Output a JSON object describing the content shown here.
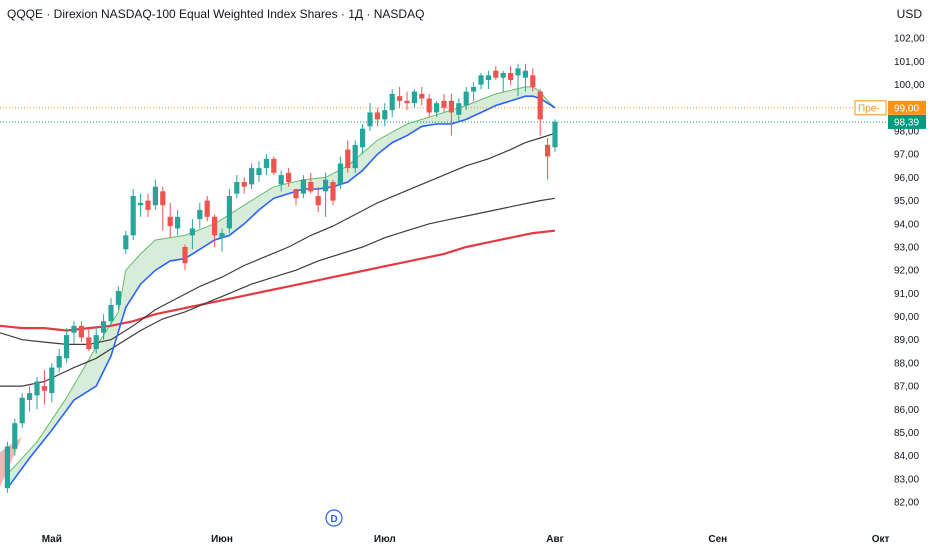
{
  "header": {
    "title": "QQQE · Direxion NASDAQ-100 Equal Weighted Index Shares · 1Д · NASDAQ",
    "currency": "USD"
  },
  "event_badge": "D",
  "colors": {
    "up": "#26a69a",
    "down": "#ef5350",
    "ema_fast": "#2962ff",
    "cloud_fill": "#c8e6c9",
    "cloud_edge": "#66bb6a",
    "sma_50": "#3d3d3d",
    "sma_100": "#3d3d3d",
    "sma_200": "#e53945",
    "premarket": "#f7931a",
    "last_price": "#089981"
  },
  "chart_data": {
    "type": "candlestick",
    "ylim": [
      81.4,
      102.7
    ],
    "y_ticks": [
      "82,00",
      "83,00",
      "84,00",
      "85,00",
      "86,00",
      "87,00",
      "88,00",
      "89,00",
      "90,00",
      "91,00",
      "92,00",
      "93,00",
      "94,00",
      "95,00",
      "96,00",
      "97,00",
      "98,00",
      "100,00",
      "101,00",
      "102,00"
    ],
    "x_labels": [
      "Май",
      "Июн",
      "Июл",
      "Авг",
      "Сен",
      "Окт"
    ],
    "price_labels": {
      "premarket_label": "Пре-",
      "premarket_price": "99,00",
      "last_price": "98,39"
    },
    "candles": [
      [
        82.6,
        84.6,
        82.4,
        84.4
      ],
      [
        84.3,
        85.6,
        84.0,
        85.4
      ],
      [
        85.4,
        86.7,
        85.2,
        86.5
      ],
      [
        86.4,
        87.0,
        85.9,
        86.7
      ],
      [
        86.6,
        87.4,
        86.0,
        87.2
      ],
      [
        87.0,
        87.7,
        86.2,
        86.8
      ],
      [
        86.7,
        88.0,
        86.3,
        87.8
      ],
      [
        87.8,
        88.6,
        87.6,
        88.3
      ],
      [
        88.2,
        89.5,
        88.0,
        89.2
      ],
      [
        89.3,
        89.8,
        88.8,
        89.6
      ],
      [
        89.6,
        89.8,
        88.9,
        89.1
      ],
      [
        89.1,
        89.5,
        88.5,
        88.6
      ],
      [
        88.6,
        89.5,
        88.4,
        89.2
      ],
      [
        89.3,
        90.1,
        89.0,
        89.8
      ],
      [
        89.8,
        90.8,
        89.6,
        90.5
      ],
      [
        90.5,
        91.3,
        90.3,
        91.1
      ],
      [
        92.9,
        93.7,
        92.7,
        93.5
      ],
      [
        93.5,
        95.5,
        93.3,
        95.2
      ],
      [
        94.8,
        95.3,
        94.3,
        94.9
      ],
      [
        95.0,
        95.3,
        94.3,
        94.6
      ],
      [
        94.8,
        95.9,
        94.6,
        95.6
      ],
      [
        95.4,
        95.6,
        93.7,
        94.8
      ],
      [
        94.3,
        94.9,
        93.4,
        93.9
      ],
      [
        93.8,
        94.6,
        93.5,
        94.3
      ],
      [
        93.0,
        93.1,
        92.0,
        92.3
      ],
      [
        93.5,
        94.2,
        92.9,
        93.8
      ],
      [
        94.2,
        94.9,
        93.8,
        94.6
      ],
      [
        95.0,
        95.2,
        94.1,
        94.3
      ],
      [
        94.3,
        94.4,
        93.0,
        93.5
      ],
      [
        93.4,
        93.8,
        92.8,
        93.6
      ],
      [
        93.8,
        95.5,
        93.6,
        95.2
      ],
      [
        95.3,
        96.1,
        95.1,
        95.8
      ],
      [
        95.8,
        96.0,
        95.3,
        95.6
      ],
      [
        95.7,
        96.6,
        95.5,
        96.4
      ],
      [
        96.1,
        96.7,
        95.8,
        96.4
      ],
      [
        96.4,
        97.0,
        96.1,
        96.8
      ],
      [
        96.8,
        96.9,
        96.1,
        96.2
      ],
      [
        95.7,
        96.3,
        95.4,
        96.1
      ],
      [
        96.2,
        96.4,
        95.6,
        95.8
      ],
      [
        95.5,
        95.5,
        94.8,
        95.1
      ],
      [
        95.3,
        96.1,
        95.1,
        95.9
      ],
      [
        95.8,
        96.2,
        95.3,
        95.4
      ],
      [
        95.2,
        95.6,
        94.5,
        94.8
      ],
      [
        95.4,
        96.2,
        94.3,
        95.9
      ],
      [
        95.8,
        95.9,
        94.8,
        95.0
      ],
      [
        95.7,
        96.9,
        95.5,
        96.6
      ],
      [
        97.2,
        97.6,
        96.2,
        96.4
      ],
      [
        96.4,
        97.6,
        96.2,
        97.4
      ],
      [
        97.3,
        98.3,
        97.0,
        98.1
      ],
      [
        98.2,
        99.2,
        98.0,
        98.8
      ],
      [
        98.8,
        99.0,
        98.2,
        98.5
      ],
      [
        98.5,
        99.2,
        98.2,
        98.9
      ],
      [
        98.9,
        99.8,
        98.6,
        99.6
      ],
      [
        99.5,
        99.9,
        99.0,
        99.3
      ],
      [
        99.3,
        99.7,
        98.9,
        99.2
      ],
      [
        99.2,
        99.8,
        99.0,
        99.7
      ],
      [
        99.6,
        99.9,
        99.1,
        99.4
      ],
      [
        99.4,
        99.6,
        98.6,
        98.8
      ],
      [
        98.8,
        99.3,
        98.6,
        99.2
      ],
      [
        99.3,
        99.6,
        98.8,
        99.0
      ],
      [
        99.3,
        99.6,
        97.8,
        98.8
      ],
      [
        98.7,
        99.4,
        98.4,
        99.2
      ],
      [
        99.1,
        99.9,
        98.9,
        99.7
      ],
      [
        99.7,
        100.1,
        99.3,
        99.9
      ],
      [
        100.0,
        100.5,
        99.8,
        100.4
      ],
      [
        100.2,
        100.6,
        99.8,
        100.4
      ],
      [
        100.6,
        100.8,
        100.2,
        100.3
      ],
      [
        100.3,
        100.6,
        99.7,
        100.5
      ],
      [
        100.5,
        100.8,
        100.0,
        100.2
      ],
      [
        100.4,
        100.9,
        99.5,
        100.7
      ],
      [
        100.3,
        100.9,
        99.7,
        100.6
      ],
      [
        100.4,
        100.7,
        99.7,
        99.9
      ],
      [
        99.7,
        99.8,
        97.8,
        98.5
      ],
      [
        97.4,
        97.7,
        95.9,
        96.9
      ],
      [
        97.3,
        98.5,
        97.1,
        98.4
      ]
    ],
    "cloud_upper": [
      [
        0,
        83.2
      ],
      [
        4,
        84.6
      ],
      [
        8,
        86.5
      ],
      [
        12,
        88.7
      ],
      [
        15,
        90.2
      ],
      [
        16,
        92.0
      ],
      [
        18,
        92.7
      ],
      [
        20,
        93.3
      ],
      [
        24,
        93.5
      ],
      [
        28,
        94.0
      ],
      [
        32,
        94.8
      ],
      [
        36,
        95.6
      ],
      [
        40,
        95.9
      ],
      [
        43,
        96.0
      ],
      [
        46,
        96.5
      ],
      [
        50,
        97.6
      ],
      [
        54,
        98.3
      ],
      [
        58,
        98.7
      ],
      [
        62,
        99.1
      ],
      [
        66,
        99.6
      ],
      [
        70,
        99.9
      ],
      [
        71,
        99.9
      ],
      [
        72,
        99.7
      ],
      [
        73,
        99.3
      ],
      [
        74,
        99.0
      ]
    ],
    "ema_fast": [
      [
        0,
        82.6
      ],
      [
        3,
        83.9
      ],
      [
        6,
        85.1
      ],
      [
        9,
        86.4
      ],
      [
        12,
        87.0
      ],
      [
        14,
        88.3
      ],
      [
        16,
        90.4
      ],
      [
        18,
        91.4
      ],
      [
        20,
        92.0
      ],
      [
        22,
        92.4
      ],
      [
        24,
        92.5
      ],
      [
        26,
        92.9
      ],
      [
        28,
        93.3
      ],
      [
        30,
        93.5
      ],
      [
        32,
        94.0
      ],
      [
        34,
        94.6
      ],
      [
        36,
        95.1
      ],
      [
        38,
        95.3
      ],
      [
        40,
        95.5
      ],
      [
        42,
        95.5
      ],
      [
        44,
        95.6
      ],
      [
        46,
        95.8
      ],
      [
        48,
        96.3
      ],
      [
        50,
        97.0
      ],
      [
        52,
        97.5
      ],
      [
        54,
        97.8
      ],
      [
        56,
        98.2
      ],
      [
        58,
        98.3
      ],
      [
        60,
        98.3
      ],
      [
        62,
        98.5
      ],
      [
        64,
        98.8
      ],
      [
        66,
        99.1
      ],
      [
        68,
        99.3
      ],
      [
        70,
        99.5
      ],
      [
        71,
        99.5
      ],
      [
        72,
        99.4
      ],
      [
        73,
        99.2
      ],
      [
        74,
        99.0
      ]
    ],
    "sma_50": [
      [
        -1,
        89.3
      ],
      [
        2,
        89.0
      ],
      [
        5,
        88.9
      ],
      [
        8,
        88.8
      ],
      [
        11,
        88.8
      ],
      [
        14,
        89.0
      ],
      [
        17,
        89.6
      ],
      [
        20,
        90.3
      ],
      [
        23,
        90.8
      ],
      [
        26,
        91.3
      ],
      [
        29,
        91.7
      ],
      [
        32,
        92.2
      ],
      [
        35,
        92.6
      ],
      [
        38,
        93.0
      ],
      [
        41,
        93.5
      ],
      [
        44,
        93.9
      ],
      [
        47,
        94.4
      ],
      [
        50,
        94.9
      ],
      [
        53,
        95.3
      ],
      [
        56,
        95.7
      ],
      [
        59,
        96.1
      ],
      [
        62,
        96.5
      ],
      [
        65,
        96.8
      ],
      [
        68,
        97.2
      ],
      [
        70,
        97.5
      ],
      [
        72,
        97.7
      ],
      [
        74,
        97.9
      ]
    ],
    "sma_100": [
      [
        -1,
        87.0
      ],
      [
        2,
        87.0
      ],
      [
        5,
        87.2
      ],
      [
        7,
        87.5
      ],
      [
        9,
        87.8
      ],
      [
        12,
        88.2
      ],
      [
        15,
        88.8
      ],
      [
        18,
        89.4
      ],
      [
        21,
        89.9
      ],
      [
        24,
        90.2
      ],
      [
        27,
        90.6
      ],
      [
        30,
        91.0
      ],
      [
        33,
        91.4
      ],
      [
        36,
        91.7
      ],
      [
        39,
        92.0
      ],
      [
        42,
        92.4
      ],
      [
        45,
        92.7
      ],
      [
        48,
        93.0
      ],
      [
        51,
        93.4
      ],
      [
        54,
        93.7
      ],
      [
        57,
        94.0
      ],
      [
        60,
        94.2
      ],
      [
        63,
        94.4
      ],
      [
        66,
        94.6
      ],
      [
        69,
        94.8
      ],
      [
        72,
        95.0
      ],
      [
        74,
        95.1
      ]
    ],
    "sma_200": [
      [
        -1,
        89.6
      ],
      [
        2,
        89.5
      ],
      [
        5,
        89.5
      ],
      [
        8,
        89.4
      ],
      [
        11,
        89.5
      ],
      [
        14,
        89.6
      ],
      [
        17,
        89.8
      ],
      [
        20,
        90.1
      ],
      [
        23,
        90.3
      ],
      [
        26,
        90.5
      ],
      [
        29,
        90.7
      ],
      [
        32,
        90.9
      ],
      [
        35,
        91.1
      ],
      [
        38,
        91.3
      ],
      [
        41,
        91.5
      ],
      [
        44,
        91.7
      ],
      [
        47,
        91.9
      ],
      [
        50,
        92.1
      ],
      [
        53,
        92.3
      ],
      [
        56,
        92.5
      ],
      [
        59,
        92.7
      ],
      [
        62,
        93.0
      ],
      [
        65,
        93.2
      ],
      [
        68,
        93.4
      ],
      [
        71,
        93.6
      ],
      [
        74,
        93.7
      ]
    ],
    "premarket_price": 99.0,
    "last_price": 98.39
  }
}
